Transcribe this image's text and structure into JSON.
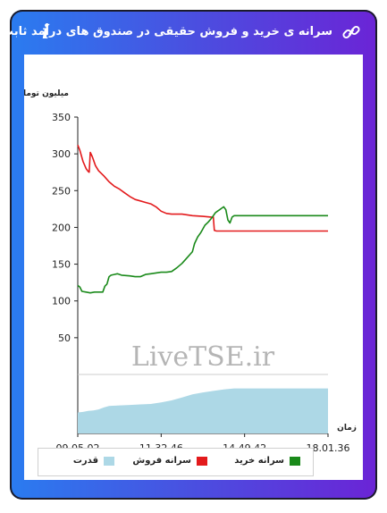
{
  "header": {
    "title": "سرانه ی خرید و فروش حقیقی در صندوق های درآمد ثابت",
    "info_glyph": "i",
    "link_icon": "link-icon",
    "info_icon": "info-icon"
  },
  "colors": {
    "sell": "#e31a1c",
    "buy": "#1a8a1a",
    "power": "#add8e6",
    "axis": "#222222",
    "grid": "#cccccc"
  },
  "chart_data": {
    "type": "line",
    "ylabel": "میلیون تومان",
    "xlabel": "زمان",
    "ylim": [
      0,
      350
    ],
    "y_ticks": [
      50,
      100,
      150,
      200,
      250,
      300,
      350
    ],
    "x_tick_labels": [
      "09.05.02",
      "11.32.46",
      "14.49.42",
      "18.01.36"
    ],
    "watermark": "LiveTSE.ir",
    "series": [
      {
        "name": "سرانه فروش",
        "color": "#e31a1c",
        "points": [
          [
            0,
            312
          ],
          [
            2,
            305
          ],
          [
            5,
            290
          ],
          [
            8,
            280
          ],
          [
            10,
            276
          ],
          [
            11,
            275
          ],
          [
            12,
            302
          ],
          [
            14,
            296
          ],
          [
            17,
            284
          ],
          [
            20,
            277
          ],
          [
            25,
            270
          ],
          [
            30,
            262
          ],
          [
            35,
            256
          ],
          [
            40,
            252
          ],
          [
            45,
            247
          ],
          [
            50,
            242
          ],
          [
            55,
            238
          ],
          [
            60,
            236
          ],
          [
            65,
            234
          ],
          [
            70,
            232
          ],
          [
            75,
            228
          ],
          [
            80,
            222
          ],
          [
            85,
            219
          ],
          [
            90,
            218
          ],
          [
            100,
            218
          ],
          [
            110,
            216
          ],
          [
            120,
            215
          ],
          [
            128,
            214
          ],
          [
            130,
            214
          ],
          [
            131,
            196
          ],
          [
            133,
            195
          ],
          [
            135,
            195
          ],
          [
            140,
            195
          ],
          [
            150,
            195
          ],
          [
            160,
            195
          ],
          [
            170,
            195
          ],
          [
            180,
            195
          ],
          [
            190,
            195
          ],
          [
            200,
            195
          ],
          [
            210,
            195
          ],
          [
            220,
            195
          ],
          [
            230,
            195
          ],
          [
            240,
            195
          ]
        ]
      },
      {
        "name": "سرانه خرید",
        "color": "#1a8a1a",
        "points": [
          [
            0,
            121
          ],
          [
            2,
            119
          ],
          [
            4,
            113
          ],
          [
            8,
            112
          ],
          [
            12,
            111
          ],
          [
            16,
            112
          ],
          [
            20,
            112
          ],
          [
            24,
            112
          ],
          [
            26,
            120
          ],
          [
            28,
            123
          ],
          [
            30,
            133
          ],
          [
            32,
            135
          ],
          [
            35,
            136
          ],
          [
            38,
            137
          ],
          [
            42,
            135
          ],
          [
            50,
            134
          ],
          [
            55,
            133
          ],
          [
            60,
            133
          ],
          [
            65,
            136
          ],
          [
            70,
            137
          ],
          [
            75,
            138
          ],
          [
            80,
            139
          ],
          [
            85,
            139
          ],
          [
            90,
            140
          ],
          [
            95,
            145
          ],
          [
            100,
            151
          ],
          [
            105,
            159
          ],
          [
            110,
            167
          ],
          [
            112,
            178
          ],
          [
            115,
            187
          ],
          [
            118,
            193
          ],
          [
            120,
            198
          ],
          [
            122,
            203
          ],
          [
            125,
            207
          ],
          [
            128,
            212
          ],
          [
            130,
            216
          ],
          [
            132,
            220
          ],
          [
            134,
            222
          ],
          [
            136,
            224
          ],
          [
            138,
            226
          ],
          [
            140,
            228
          ],
          [
            142,
            224
          ],
          [
            144,
            210
          ],
          [
            146,
            206
          ],
          [
            148,
            214
          ],
          [
            150,
            216
          ],
          [
            160,
            216
          ],
          [
            170,
            216
          ],
          [
            180,
            216
          ],
          [
            190,
            216
          ],
          [
            200,
            216
          ],
          [
            210,
            216
          ],
          [
            220,
            216
          ],
          [
            230,
            216
          ],
          [
            240,
            216
          ]
        ]
      },
      {
        "name": "قدرت",
        "color": "#add8e6",
        "points": [
          [
            0,
            0.42
          ],
          [
            5,
            0.43
          ],
          [
            10,
            0.45
          ],
          [
            15,
            0.46
          ],
          [
            20,
            0.48
          ],
          [
            25,
            0.52
          ],
          [
            30,
            0.55
          ],
          [
            40,
            0.56
          ],
          [
            50,
            0.57
          ],
          [
            60,
            0.58
          ],
          [
            70,
            0.59
          ],
          [
            80,
            0.62
          ],
          [
            90,
            0.66
          ],
          [
            100,
            0.72
          ],
          [
            110,
            0.78
          ],
          [
            120,
            0.82
          ],
          [
            130,
            0.85
          ],
          [
            140,
            0.88
          ],
          [
            150,
            0.9
          ],
          [
            160,
            0.9
          ],
          [
            180,
            0.9
          ],
          [
            200,
            0.9
          ],
          [
            220,
            0.9
          ],
          [
            240,
            0.9
          ]
        ]
      }
    ]
  },
  "legend": {
    "items": [
      {
        "label": "سرانه خرید",
        "color": "#1a8a1a"
      },
      {
        "label": "سرانه فروش",
        "color": "#e31a1c"
      },
      {
        "label": "قدرت",
        "color": "#add8e6"
      }
    ]
  }
}
